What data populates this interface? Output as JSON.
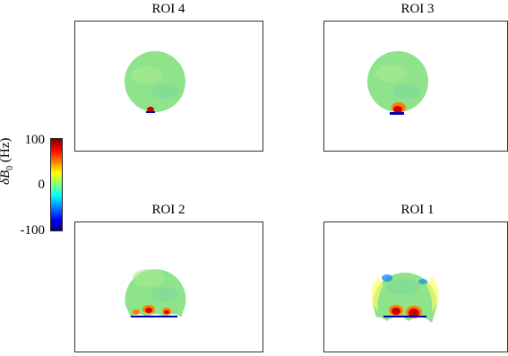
{
  "panels": [
    {
      "title": "ROI 4"
    },
    {
      "title": "ROI 3"
    },
    {
      "title": "ROI 2"
    },
    {
      "title": "ROI 1"
    }
  ],
  "colorbar": {
    "label_symbol": "δB",
    "label_sub": "0",
    "label_unit": "(Hz)",
    "ticks": [
      "100",
      "0",
      "-100"
    ],
    "colormap": "jet",
    "range": [
      -100,
      100
    ]
  },
  "colors": {
    "brain_base": "#8fe38a",
    "hot": "#cc0000",
    "cold": "#0000aa"
  }
}
